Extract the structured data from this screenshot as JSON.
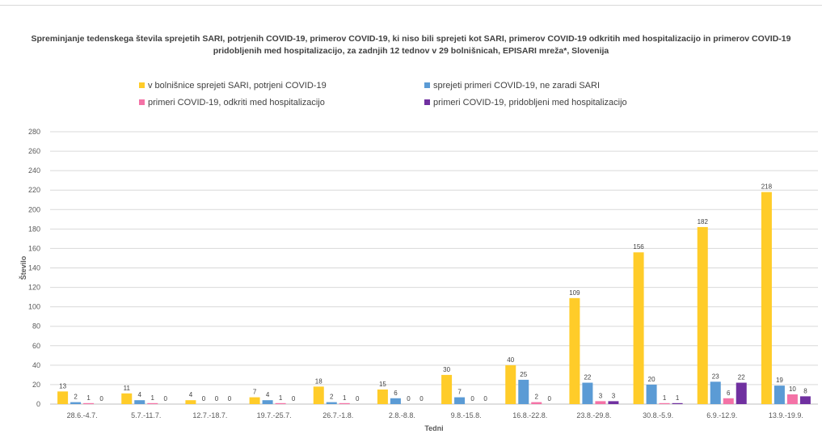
{
  "chart_data": {
    "type": "bar",
    "title": "Spreminjanje tedenskega števila sprejetih SARI, potrjenih COVID-19, primerov COVID-19, ki niso bili sprejeti kot SARI, primerov COVID-19 odkritih med hospitalizacijo in primerov COVID-19 pridobljenih med hospitalizacijo, za zadnjih 12 tednov v 29 bolnišnicah, EPISARI mreža*, Slovenija",
    "xlabel": "Tedni",
    "ylabel": "Število",
    "ylim": [
      0,
      280
    ],
    "yticks": [
      0,
      20,
      40,
      60,
      80,
      100,
      120,
      140,
      160,
      180,
      200,
      220,
      240,
      260,
      280
    ],
    "grid": true,
    "legend": "top",
    "categories": [
      "28.6.-4.7.",
      "5.7.-11.7.",
      "12.7.-18.7.",
      "19.7.-25.7.",
      "26.7.-1.8.",
      "2.8.-8.8.",
      "9.8.-15.8.",
      "16.8.-22.8.",
      "23.8.-29.8.",
      "30.8.-5.9.",
      "6.9.-12.9.",
      "13.9.-19.9."
    ],
    "series": [
      {
        "name": "v bolnišnice sprejeti SARI, potrjeni COVID-19",
        "color": "#ffcc29",
        "values": [
          13,
          11,
          4,
          7,
          18,
          15,
          30,
          40,
          109,
          156,
          182,
          218
        ]
      },
      {
        "name": "sprejeti primeri COVID-19, ne zaradi SARI",
        "color": "#5b9bd5",
        "values": [
          2,
          4,
          0,
          4,
          2,
          6,
          7,
          25,
          22,
          20,
          23,
          19
        ]
      },
      {
        "name": "primeri COVID-19, odkriti med hospitalizacijo",
        "color": "#f472a6",
        "values": [
          1,
          1,
          0,
          1,
          1,
          0,
          0,
          2,
          3,
          1,
          6,
          10
        ]
      },
      {
        "name": "primeri COVID-19, pridobljeni med hospitalizacijo",
        "color": "#7030a0",
        "values": [
          0,
          0,
          0,
          0,
          0,
          0,
          0,
          0,
          3,
          1,
          22,
          8
        ]
      }
    ]
  }
}
